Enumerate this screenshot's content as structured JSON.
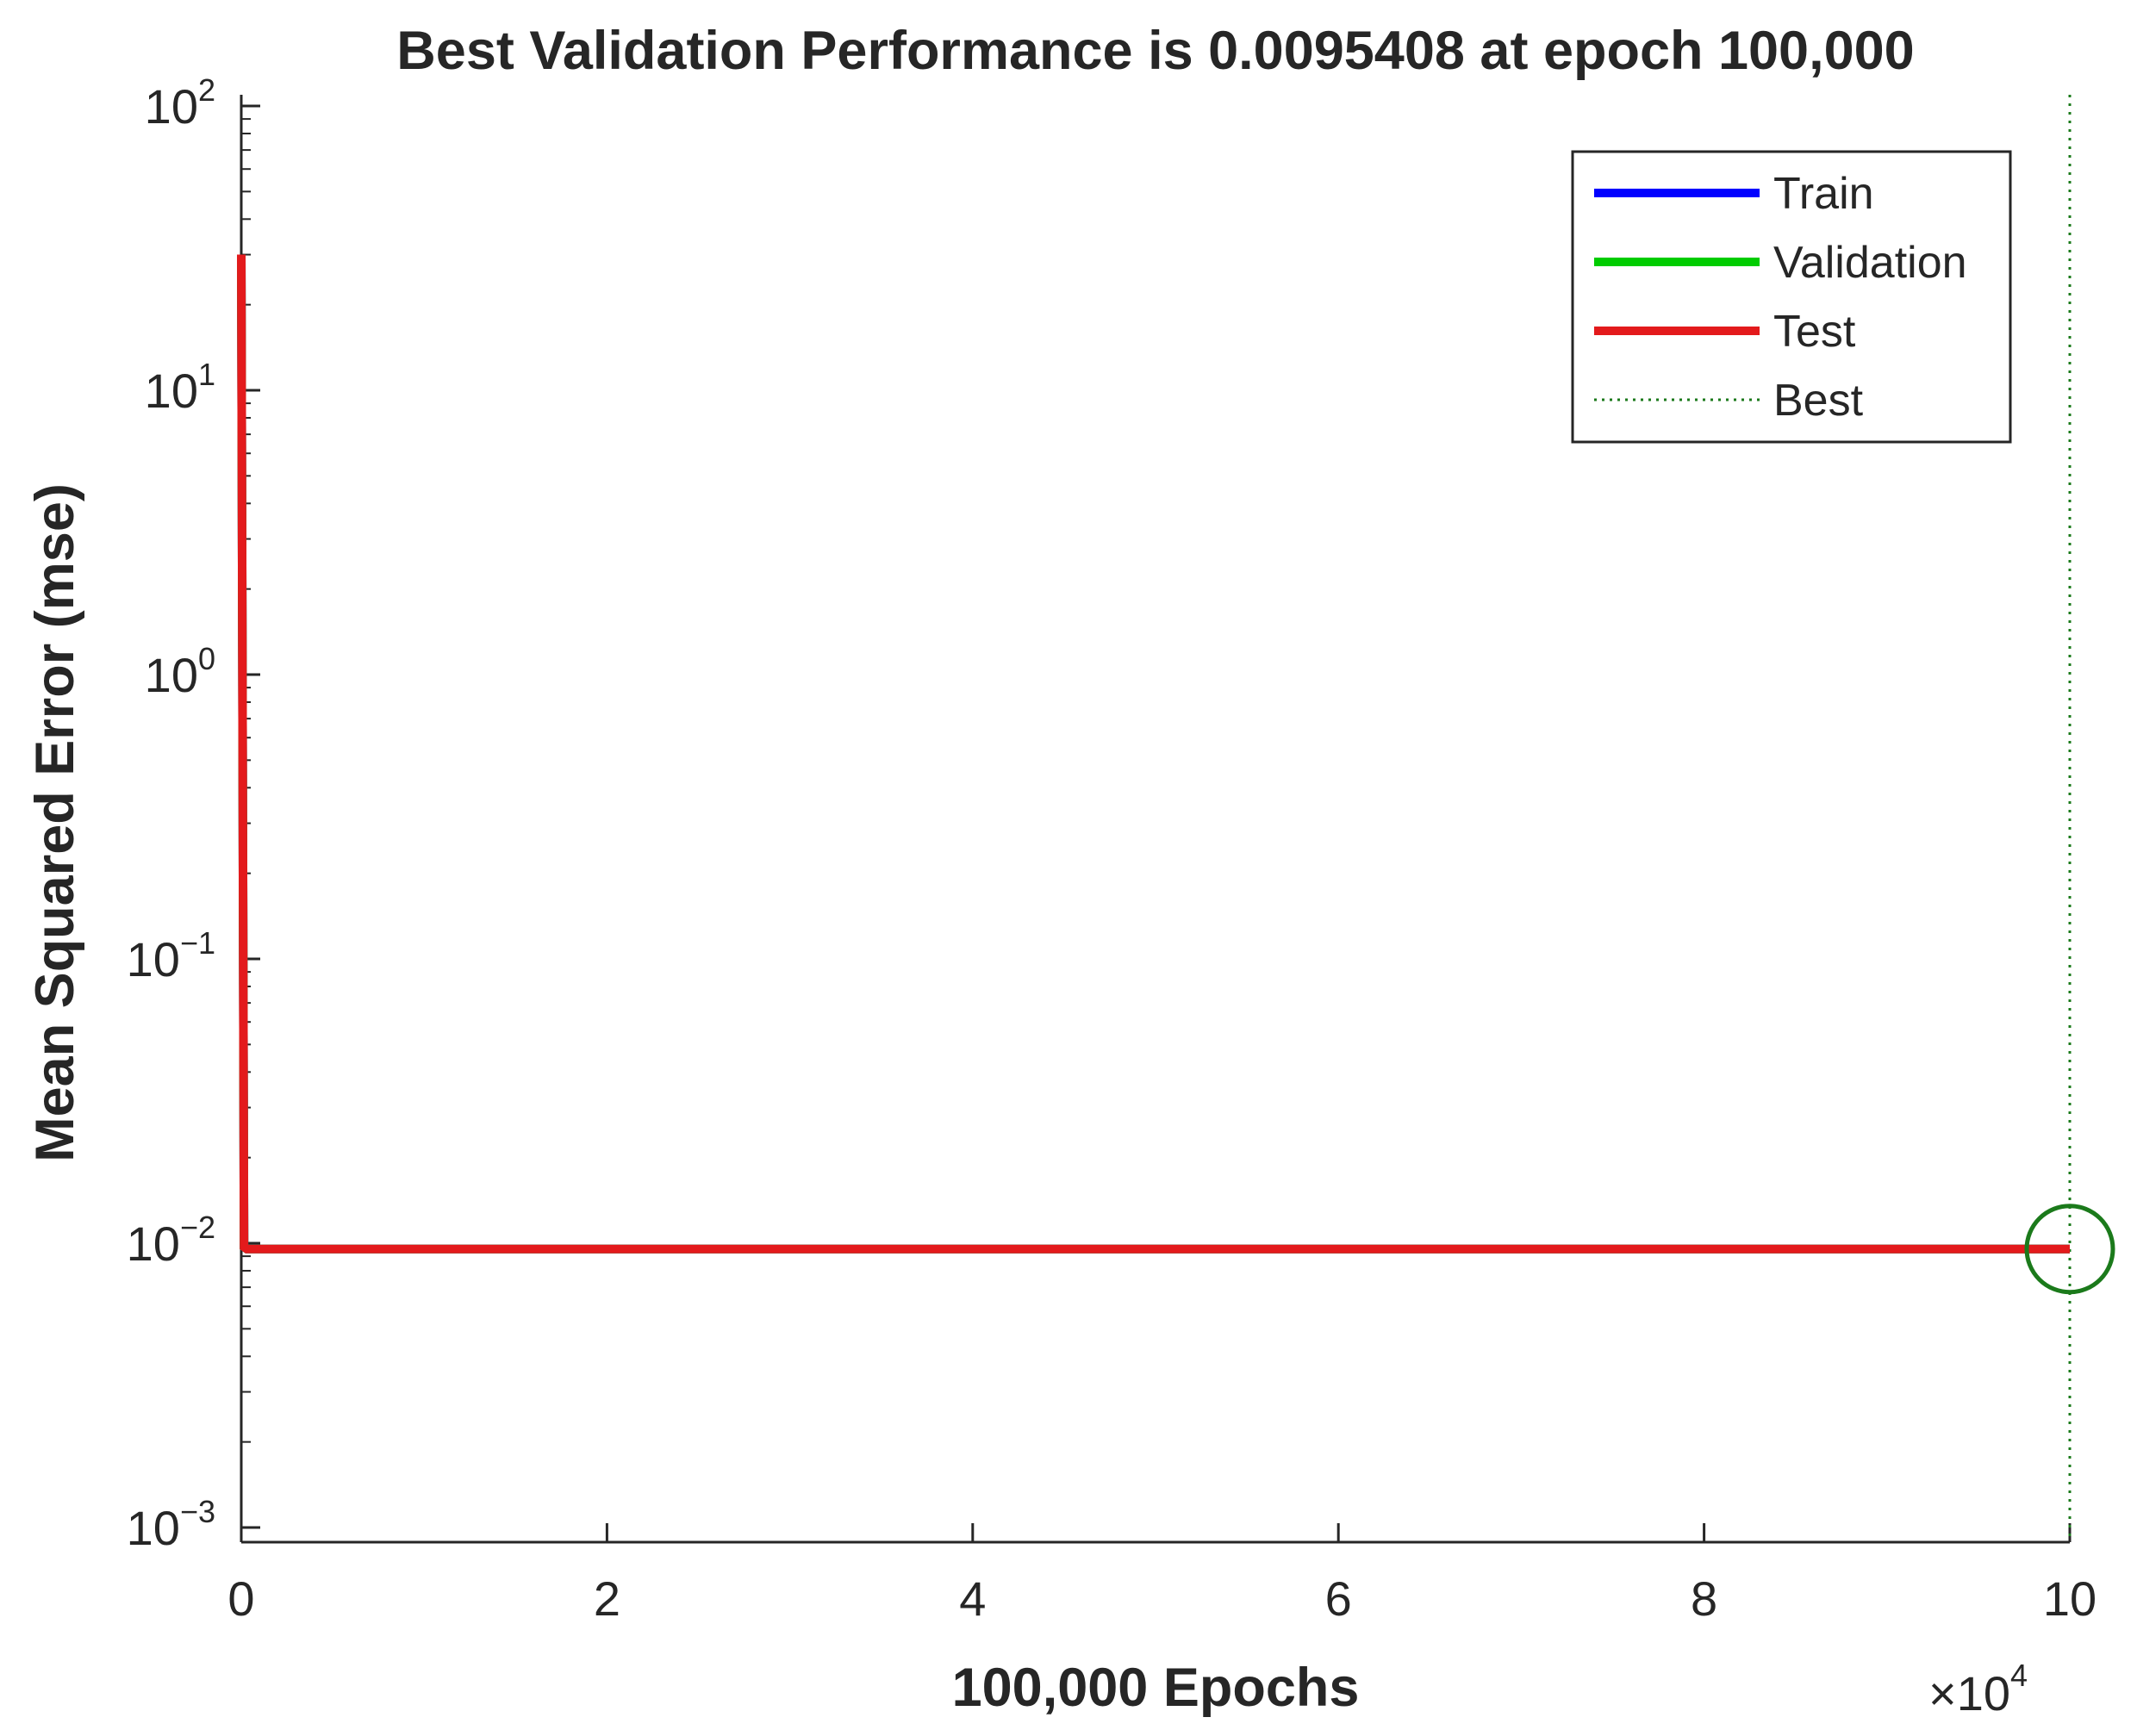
{
  "chart_data": {
    "type": "line",
    "title": "Best Validation Performance is 0.0095408 at epoch 100,000",
    "xlabel": "100,000 Epochs",
    "ylabel": "Mean Squared Error  (mse)",
    "x_multiplier_label": "×10",
    "x_multiplier_exp": "4",
    "xlim": [
      0,
      100000
    ],
    "ylim": [
      0.001,
      100
    ],
    "yscale": "log",
    "grid": false,
    "legend_position": "top-right",
    "x_ticks": [
      {
        "value": 0,
        "label": "0"
      },
      {
        "value": 20000,
        "label": "2"
      },
      {
        "value": 40000,
        "label": "4"
      },
      {
        "value": 60000,
        "label": "6"
      },
      {
        "value": 80000,
        "label": "8"
      },
      {
        "value": 100000,
        "label": "10"
      }
    ],
    "y_ticks": [
      {
        "value": 100,
        "base": "10",
        "exp": "2"
      },
      {
        "value": 10,
        "base": "10",
        "exp": "1"
      },
      {
        "value": 1,
        "base": "10",
        "exp": "0"
      },
      {
        "value": 0.1,
        "base": "10",
        "exp": "−1"
      },
      {
        "value": 0.01,
        "base": "10",
        "exp": "−2"
      },
      {
        "value": 0.001,
        "base": "10",
        "exp": "−3"
      }
    ],
    "series": [
      {
        "name": "Train",
        "color": "#0000ff",
        "x": [
          0,
          150,
          300,
          100000
        ],
        "y": [
          30,
          0.0097,
          0.0095408,
          0.0095408
        ]
      },
      {
        "name": "Validation",
        "color": "#00cc00",
        "x": [
          0,
          150,
          300,
          100000
        ],
        "y": [
          30,
          0.0097,
          0.0095408,
          0.0095408
        ]
      },
      {
        "name": "Test",
        "color": "#e31a1c",
        "x": [
          0,
          150,
          300,
          100000
        ],
        "y": [
          30,
          0.0097,
          0.0095408,
          0.0095408
        ]
      }
    ],
    "best": {
      "name": "Best",
      "epoch": 100000,
      "value": 0.0095408,
      "color": "#1b7a1b"
    }
  }
}
